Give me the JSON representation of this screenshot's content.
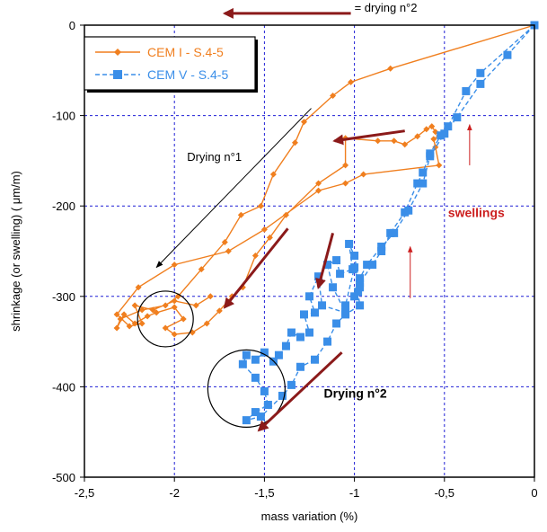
{
  "chart_data": {
    "type": "scatter",
    "xlabel": "mass variation (%)",
    "ylabel": "shrinkage (or swelling) ( μm/m)",
    "xlim": [
      -2.5,
      0
    ],
    "ylim": [
      -500,
      0
    ],
    "x_ticks": [
      -2.5,
      -2,
      -1.5,
      -1,
      -0.5,
      0
    ],
    "x_tick_labels": [
      "-2,5",
      "-2",
      "-1,5",
      "-1",
      "-0,5",
      "0"
    ],
    "y_ticks": [
      0,
      -100,
      -200,
      -300,
      -400,
      -500
    ],
    "y_tick_labels": [
      "0",
      "-100",
      "-200",
      "-300",
      "-400",
      "-500"
    ],
    "grid": true,
    "legend_position": "top-left",
    "series": [
      {
        "name": "CEM I - S.4-5",
        "color": "#f07f1f",
        "marker": "diamond",
        "line": "solid",
        "points": [
          [
            0,
            0
          ],
          [
            -0.8,
            -48
          ],
          [
            -1.02,
            -63
          ],
          [
            -1.12,
            -78
          ],
          [
            -1.28,
            -107
          ],
          [
            -1.33,
            -130
          ],
          [
            -1.45,
            -165
          ],
          [
            -1.52,
            -200
          ],
          [
            -1.63,
            -210
          ],
          [
            -1.72,
            -240
          ],
          [
            -1.85,
            -270
          ],
          [
            -1.98,
            -300
          ],
          [
            -2.05,
            -310
          ],
          [
            -2.18,
            -315
          ],
          [
            -2.3,
            -325
          ],
          [
            -2.32,
            -335
          ],
          [
            -2.28,
            -320
          ],
          [
            -2.22,
            -330
          ],
          [
            -2.15,
            -322
          ],
          [
            -2.1,
            -318
          ],
          [
            -2.0,
            -312
          ],
          [
            -1.95,
            -325
          ],
          [
            -2.05,
            -335
          ],
          [
            -2.0,
            -342
          ],
          [
            -1.9,
            -340
          ],
          [
            -1.82,
            -330
          ],
          [
            -1.75,
            -316
          ],
          [
            -1.68,
            -300
          ],
          [
            -1.62,
            -290
          ],
          [
            -1.55,
            -255
          ],
          [
            -1.47,
            -235
          ],
          [
            -1.38,
            -210
          ],
          [
            -1.2,
            -175
          ],
          [
            -1.05,
            -155
          ],
          [
            -1.05,
            -125
          ],
          [
            -0.87,
            -128
          ],
          [
            -0.78,
            -128
          ],
          [
            -0.72,
            -132
          ],
          [
            -0.65,
            -123
          ],
          [
            -0.6,
            -115
          ],
          [
            -0.57,
            -112
          ],
          [
            -0.55,
            -118
          ],
          [
            -0.53,
            -122
          ],
          [
            -0.56,
            -126
          ],
          [
            -0.55,
            -135
          ],
          [
            -0.53,
            -155
          ],
          [
            -0.95,
            -165
          ],
          [
            -1.05,
            -175
          ],
          [
            -1.2,
            -183
          ],
          [
            -1.5,
            -226
          ],
          [
            -1.7,
            -250
          ],
          [
            -2.0,
            -265
          ],
          [
            -2.2,
            -290
          ],
          [
            -2.32,
            -320
          ],
          [
            -2.25,
            -333
          ],
          [
            -2.18,
            -330
          ],
          [
            -2.22,
            -310
          ],
          [
            -2.12,
            -315
          ],
          [
            -2.0,
            -305
          ],
          [
            -1.88,
            -310
          ],
          [
            -1.8,
            -300
          ]
        ]
      },
      {
        "name": "CEM V - S.4-5",
        "color": "#3a8ee8",
        "marker": "square",
        "line": "dashed",
        "points": [
          [
            0,
            0
          ],
          [
            -0.3,
            -53
          ],
          [
            -0.38,
            -73
          ],
          [
            -0.48,
            -112
          ],
          [
            -0.52,
            -122
          ],
          [
            -0.58,
            -142
          ],
          [
            -0.62,
            -163
          ],
          [
            -0.65,
            -175
          ],
          [
            -0.72,
            -207
          ],
          [
            -0.8,
            -230
          ],
          [
            -0.85,
            -250
          ],
          [
            -0.9,
            -265
          ],
          [
            -0.97,
            -285
          ],
          [
            -1.0,
            -300
          ],
          [
            -1.05,
            -310
          ],
          [
            -1.0,
            -268
          ],
          [
            -0.97,
            -290
          ],
          [
            -1.0,
            -255
          ],
          [
            -1.03,
            -242
          ],
          [
            -1.01,
            -270
          ],
          [
            -1.08,
            -275
          ],
          [
            -1.1,
            -260
          ],
          [
            -1.15,
            -265
          ],
          [
            -1.12,
            -290
          ],
          [
            -1.05,
            -318
          ],
          [
            -1.18,
            -310
          ],
          [
            -1.2,
            -278
          ],
          [
            -1.25,
            -300
          ],
          [
            -1.22,
            -318
          ],
          [
            -1.28,
            -320
          ],
          [
            -1.25,
            -340
          ],
          [
            -1.3,
            -345
          ],
          [
            -1.35,
            -340
          ],
          [
            -1.38,
            -355
          ],
          [
            -1.42,
            -365
          ],
          [
            -1.45,
            -372
          ],
          [
            -1.5,
            -362
          ],
          [
            -1.55,
            -370
          ],
          [
            -1.6,
            -365
          ],
          [
            -1.62,
            -375
          ],
          [
            -1.55,
            -390
          ],
          [
            -1.5,
            -405
          ],
          [
            -1.48,
            -420
          ],
          [
            -1.55,
            -428
          ],
          [
            -1.6,
            -437
          ],
          [
            -1.52,
            -433
          ],
          [
            -1.4,
            -410
          ],
          [
            -1.35,
            -398
          ],
          [
            -1.3,
            -378
          ],
          [
            -1.22,
            -370
          ],
          [
            -1.15,
            -350
          ],
          [
            -1.1,
            -330
          ],
          [
            -1.05,
            -320
          ],
          [
            -0.97,
            -310
          ],
          [
            -0.98,
            -295
          ],
          [
            -0.97,
            -280
          ],
          [
            -0.93,
            -265
          ],
          [
            -0.85,
            -245
          ],
          [
            -0.78,
            -230
          ],
          [
            -0.7,
            -205
          ],
          [
            -0.62,
            -175
          ],
          [
            -0.58,
            -145
          ],
          [
            -0.5,
            -120
          ],
          [
            -0.43,
            -102
          ],
          [
            -0.3,
            -65
          ],
          [
            -0.15,
            -33
          ],
          [
            0,
            0
          ]
        ]
      }
    ],
    "annotations": [
      {
        "text": "= drying n°2",
        "at": [
          -1.0,
          15
        ],
        "color": "#000000"
      },
      {
        "text": "Drying n°1",
        "at": [
          -1.93,
          -150
        ],
        "color": "#000000"
      },
      {
        "text": "swellings",
        "at": [
          -0.48,
          -212
        ],
        "color": "#cc1f1f"
      },
      {
        "text": "Drying n°2",
        "at": [
          -1.17,
          -412
        ],
        "color": "#000000"
      }
    ],
    "arrows": [
      {
        "from": [
          -1.02,
          13
        ],
        "to": [
          -1.72,
          13
        ],
        "color": "#8b1a1a",
        "width": 3
      },
      {
        "from": [
          -0.72,
          -117
        ],
        "to": [
          -1.11,
          -128
        ],
        "color": "#8b1a1a",
        "width": 3
      },
      {
        "from": [
          -1.37,
          -225
        ],
        "to": [
          -1.72,
          -312
        ],
        "color": "#8b1a1a",
        "width": 3
      },
      {
        "from": [
          -1.12,
          -230
        ],
        "to": [
          -1.2,
          -290
        ],
        "color": "#8b1a1a",
        "width": 3
      },
      {
        "from": [
          -1.07,
          -362
        ],
        "to": [
          -1.53,
          -448
        ],
        "color": "#8b1a1a",
        "width": 3
      },
      {
        "from": [
          -1.24,
          -92
        ],
        "to": [
          -2.1,
          -268
        ],
        "color": "#000000",
        "width": 1
      },
      {
        "from": [
          -0.36,
          -155
        ],
        "to": [
          -0.36,
          -110
        ],
        "color": "#cc1f1f",
        "width": 1
      },
      {
        "from": [
          -0.69,
          -302
        ],
        "to": [
          -0.69,
          -245
        ],
        "color": "#cc1f1f",
        "width": 1
      }
    ],
    "circles": [
      {
        "center": [
          -2.05,
          -325
        ],
        "r_px": 31
      },
      {
        "center": [
          -1.6,
          -402
        ],
        "r_px": 43
      }
    ]
  }
}
